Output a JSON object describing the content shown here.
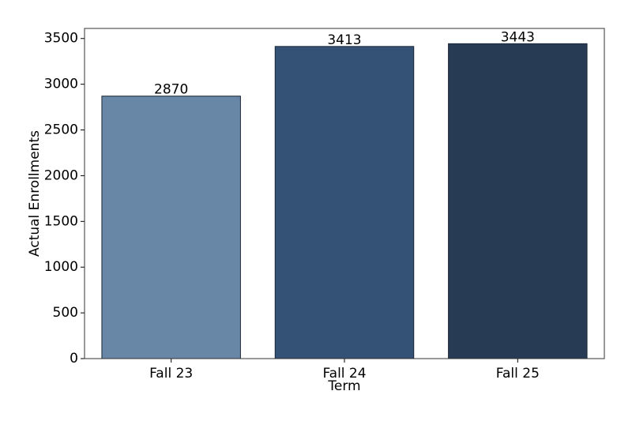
{
  "chart_data": {
    "type": "bar",
    "x_label": "Term",
    "y_label": "Actual Enrollments",
    "categories": [
      "Fall 23",
      "Fall 24",
      "Fall 25"
    ],
    "values": [
      2870,
      3413,
      3443
    ],
    "colors": [
      "#6886a5",
      "#345275",
      "#283b55"
    ],
    "ylim": [
      0,
      3610
    ],
    "yticks": [
      0,
      500,
      1000,
      1500,
      2000,
      2500,
      3000,
      3500
    ],
    "grid": false
  }
}
